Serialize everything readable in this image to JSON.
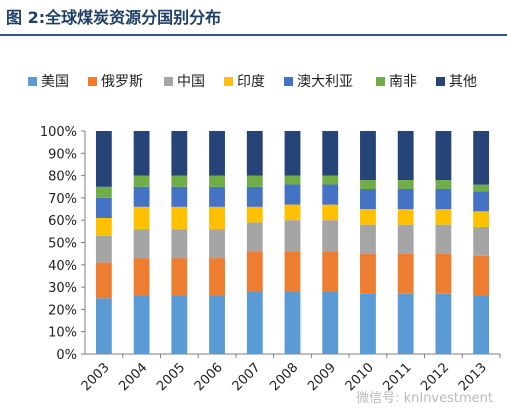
{
  "figure_title": "图 2:全球煤炭资源分国别分布",
  "watermark": "微信号: knInvestment",
  "chart_data": {
    "type": "stacked_bar_100",
    "categories": [
      "2003",
      "2004",
      "2005",
      "2006",
      "2007",
      "2008",
      "2009",
      "2010",
      "2011",
      "2012",
      "2013"
    ],
    "series": [
      {
        "name": "美国",
        "color": "#5b9bd5",
        "values": [
          25,
          26,
          26,
          26,
          28,
          28,
          28,
          27,
          27,
          27,
          26
        ]
      },
      {
        "name": "俄罗斯",
        "color": "#ed7d31",
        "values": [
          16,
          17,
          17,
          17,
          18,
          18,
          18,
          18,
          18,
          18,
          18
        ]
      },
      {
        "name": "中国",
        "color": "#a5a5a5",
        "values": [
          12,
          13,
          13,
          13,
          13,
          14,
          14,
          13,
          13,
          13,
          13
        ]
      },
      {
        "name": "印度",
        "color": "#ffc000",
        "values": [
          8,
          10,
          10,
          10,
          7,
          7,
          7,
          7,
          7,
          7,
          7
        ]
      },
      {
        "name": "澳大利亚",
        "color": "#4472c4",
        "values": [
          9,
          9,
          9,
          9,
          9,
          9,
          9,
          9,
          9,
          9,
          9
        ]
      },
      {
        "name": "南非",
        "color": "#70ad47",
        "values": [
          5,
          5,
          5,
          5,
          5,
          4,
          4,
          4,
          4,
          4,
          3
        ]
      },
      {
        "name": "其他",
        "color": "#264478",
        "values": [
          25,
          20,
          20,
          20,
          20,
          20,
          20,
          22,
          22,
          22,
          24
        ]
      }
    ],
    "y_ticks": [
      "0%",
      "10%",
      "20%",
      "30%",
      "40%",
      "50%",
      "60%",
      "70%",
      "80%",
      "90%",
      "100%"
    ],
    "ylim": [
      0,
      100
    ],
    "grid": false,
    "legend_position": "top"
  }
}
